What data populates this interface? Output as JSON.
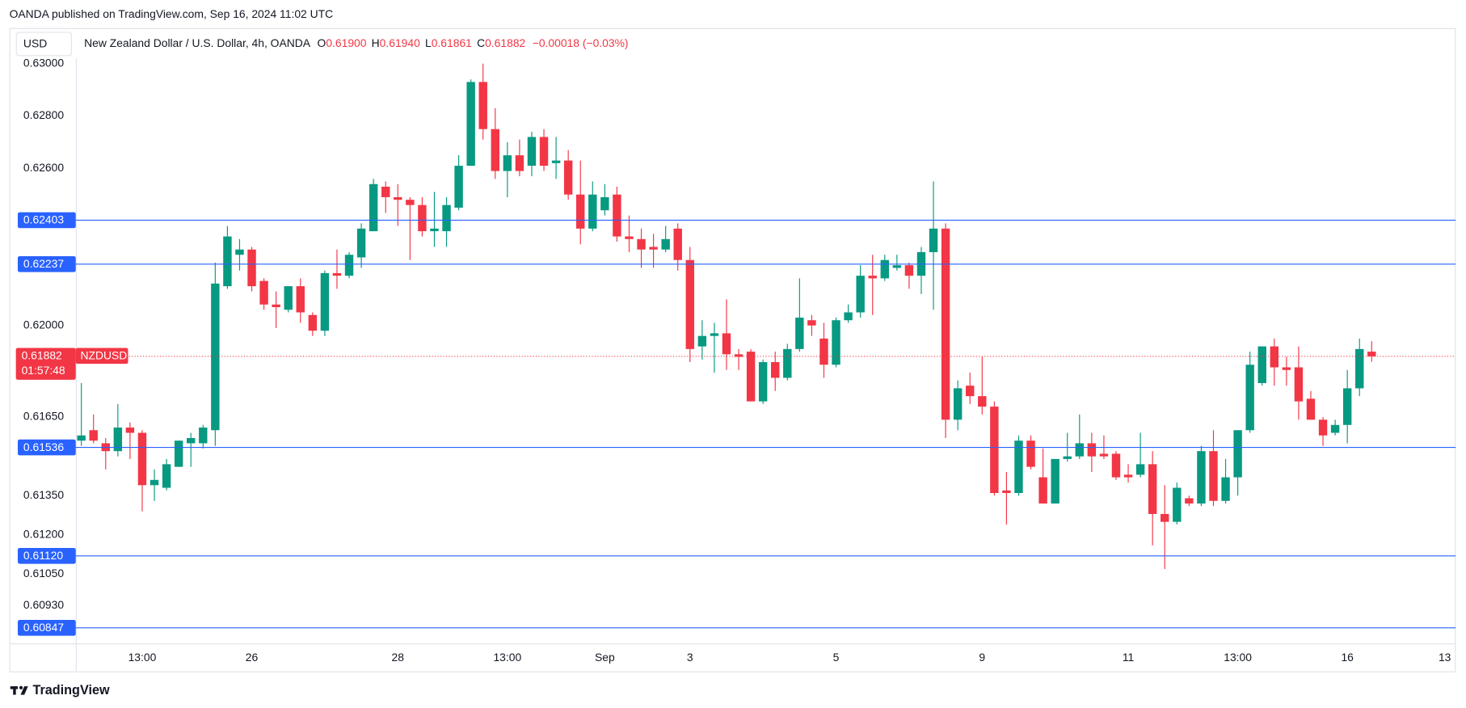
{
  "header": "OANDA published on TradingView.com, Sep 16, 2024 11:02 UTC",
  "footer": "TradingView",
  "chart_data": {
    "type": "candlestick",
    "currency": "USD",
    "symbol": "NZDUSD",
    "legend": {
      "title": "New Zealand Dollar / U.S. Dollar, 4h, OANDA",
      "items": [
        {
          "key": "O",
          "value": {
            "value": 0.619,
            "label": "0.61900"
          }
        },
        {
          "key": "H",
          "value": {
            "value": 0.6194,
            "label": "0.61940"
          }
        },
        {
          "key": "L",
          "value": {
            "value": 0.61861,
            "label": "0.61861"
          }
        },
        {
          "key": "C",
          "value": {
            "value": 0.61882,
            "label": "0.61882"
          }
        }
      ],
      "change": "−0.00018 (−0.03%)"
    },
    "categories": [
      null,
      null,
      null,
      null,
      null,
      "13:00",
      null,
      null,
      null,
      null,
      null,
      null,
      null,
      null,
      "26",
      null,
      null,
      null,
      null,
      null,
      null,
      null,
      null,
      null,
      null,
      null,
      "28",
      null,
      null,
      null,
      null,
      null,
      null,
      null,
      null,
      "13:00",
      null,
      null,
      null,
      null,
      null,
      null,
      null,
      "Sep",
      null,
      null,
      null,
      null,
      null,
      null,
      "3",
      null,
      null,
      null,
      null,
      null,
      null,
      null,
      null,
      null,
      null,
      null,
      "5",
      null,
      null,
      null,
      null,
      null,
      null,
      null,
      null,
      null,
      null,
      null,
      "9",
      null,
      null,
      null,
      null,
      null,
      null,
      null,
      null,
      null,
      null,
      null,
      "11",
      null,
      null,
      null,
      null,
      null,
      null,
      null,
      null,
      "13:00",
      null,
      null,
      null,
      null,
      null,
      null,
      null,
      null,
      "16",
      null,
      null,
      null,
      null,
      null,
      null,
      null,
      "13"
    ],
    "open": [
      0.6156,
      0.616,
      0.6155,
      0.6152,
      0.6161,
      0.6159,
      0.6139,
      0.6138,
      0.6146,
      0.6155,
      0.6155,
      0.616,
      0.6215,
      0.6227,
      0.6229,
      0.6217,
      0.6208,
      0.6206,
      0.6215,
      0.6204,
      0.6198,
      0.622,
      0.6219,
      0.6226,
      0.6236,
      0.6253,
      0.6249,
      0.6248,
      0.6246,
      0.6236,
      0.6236,
      0.6245,
      0.6261,
      0.6293,
      0.6275,
      0.6259,
      0.6265,
      0.6261,
      0.6272,
      0.6262,
      0.6263,
      0.625,
      0.6237,
      0.6244,
      0.625,
      0.6234,
      0.6233,
      0.623,
      0.6229,
      0.6237,
      0.6225,
      0.6192,
      0.6196,
      0.6197,
      0.6189,
      0.619,
      0.6171,
      0.6186,
      0.618,
      0.6191,
      0.6202,
      0.6195,
      0.6185,
      0.6202,
      0.6205,
      0.6219,
      0.6218,
      0.6222,
      0.6223,
      0.6219,
      0.6228,
      0.6237,
      0.6164,
      0.6177,
      0.6173,
      0.6169,
      0.6137,
      0.6136,
      0.6156,
      0.6142,
      0.6132,
      0.6149,
      0.615,
      0.6155,
      0.6151,
      0.6151,
      0.6143,
      0.6143,
      0.6147,
      0.6128,
      0.6125,
      0.6134,
      0.6132,
      0.6152,
      0.6133,
      0.6142,
      0.616,
      0.6178,
      0.6192,
      0.6184,
      0.6184,
      0.6172,
      0.6164,
      0.6159,
      0.6162,
      0.6176,
      0.619,
      null,
      null,
      null,
      null,
      null,
      null
    ],
    "high": [
      0.6178,
      0.6166,
      0.6157,
      0.617,
      0.6163,
      0.616,
      0.6145,
      0.6149,
      0.6156,
      0.6159,
      0.6162,
      0.6224,
      0.6238,
      0.6233,
      0.623,
      0.6218,
      0.6213,
      0.6215,
      0.6218,
      0.6205,
      0.6221,
      0.6229,
      0.6228,
      0.6239,
      0.6256,
      0.6255,
      0.6254,
      0.6249,
      0.6249,
      0.6251,
      0.6249,
      0.6265,
      0.6294,
      0.63,
      0.6283,
      0.627,
      0.6271,
      0.6274,
      0.6275,
      0.6272,
      0.6267,
      0.6263,
      0.6255,
      0.6254,
      0.6253,
      0.6242,
      0.6237,
      0.6235,
      0.6238,
      0.6239,
      0.623,
      0.6202,
      0.6201,
      0.621,
      0.6191,
      0.6191,
      0.6187,
      0.619,
      0.6193,
      0.6218,
      0.6204,
      0.6201,
      0.6203,
      0.6208,
      0.6223,
      0.6227,
      0.6227,
      0.6227,
      0.6224,
      0.623,
      0.6255,
      0.6239,
      0.6179,
      0.6182,
      0.6188,
      0.6171,
      0.6144,
      0.6158,
      0.6158,
      0.6153,
      0.6149,
      0.6159,
      0.6166,
      0.6159,
      0.6158,
      0.6152,
      0.6147,
      0.6159,
      0.6152,
      0.6139,
      0.614,
      0.6135,
      0.6154,
      0.616,
      0.6149,
      0.616,
      0.619,
      0.6192,
      0.6195,
      0.6188,
      0.6192,
      0.6175,
      0.6165,
      0.6164,
      0.6183,
      0.6195,
      0.6194,
      null,
      null,
      null,
      null,
      null,
      null
    ],
    "low": [
      0.6154,
      0.6155,
      0.6145,
      0.615,
      0.6149,
      0.6129,
      0.6133,
      0.6137,
      0.6146,
      0.6146,
      0.6153,
      0.6154,
      0.6214,
      0.6221,
      0.6213,
      0.6206,
      0.6199,
      0.6205,
      0.6201,
      0.6196,
      0.6196,
      0.6214,
      0.6218,
      0.6222,
      0.6236,
      0.6243,
      0.6238,
      0.6225,
      0.6234,
      0.623,
      0.623,
      0.6244,
      0.6261,
      0.6271,
      0.6256,
      0.6249,
      0.6257,
      0.6257,
      0.6259,
      0.6256,
      0.6248,
      0.6231,
      0.6236,
      0.6242,
      0.6232,
      0.6228,
      0.6222,
      0.6222,
      0.6228,
      0.6221,
      0.6186,
      0.6187,
      0.6182,
      0.6183,
      0.6183,
      0.6171,
      0.617,
      0.6175,
      0.6179,
      0.619,
      0.6196,
      0.618,
      0.6184,
      0.6201,
      0.6203,
      0.6204,
      0.6217,
      0.6221,
      0.6214,
      0.6212,
      0.6206,
      0.6157,
      0.616,
      0.617,
      0.6166,
      0.6135,
      0.6124,
      0.6135,
      0.6145,
      0.6132,
      0.6132,
      0.6148,
      0.6149,
      0.6144,
      0.6149,
      0.6141,
      0.614,
      0.6142,
      0.6116,
      0.6107,
      0.6124,
      0.6131,
      0.6131,
      0.6131,
      0.6132,
      0.6135,
      0.6159,
      0.6177,
      0.6177,
      0.6177,
      0.6164,
      0.6164,
      0.6154,
      0.6158,
      0.6155,
      0.6173,
      0.61861,
      null,
      null,
      null,
      null,
      null,
      null
    ],
    "close": [
      0.6158,
      0.6156,
      0.6152,
      0.6161,
      0.6159,
      0.6139,
      0.6141,
      0.6147,
      0.6156,
      0.6157,
      0.6161,
      0.6216,
      0.6234,
      0.6229,
      0.6215,
      0.6208,
      0.6207,
      0.6215,
      0.6205,
      0.6198,
      0.622,
      0.6219,
      0.6227,
      0.6237,
      0.6254,
      0.6249,
      0.6248,
      0.6246,
      0.6236,
      0.6237,
      0.6246,
      0.6261,
      0.6293,
      0.6275,
      0.6259,
      0.6265,
      0.6259,
      0.6272,
      0.6261,
      0.6263,
      0.625,
      0.6237,
      0.625,
      0.6249,
      0.6234,
      0.6233,
      0.6229,
      0.6229,
      0.6233,
      0.6225,
      0.6191,
      0.6196,
      0.6197,
      0.6189,
      0.6188,
      0.6171,
      0.6186,
      0.618,
      0.6191,
      0.6203,
      0.62,
      0.6185,
      0.6202,
      0.6205,
      0.6219,
      0.6218,
      0.6225,
      0.6223,
      0.6219,
      0.6228,
      0.6237,
      0.6164,
      0.6176,
      0.6173,
      0.6169,
      0.6136,
      0.6136,
      0.6156,
      0.6146,
      0.6132,
      0.6149,
      0.615,
      0.6155,
      0.615,
      0.615,
      0.6142,
      0.6142,
      0.6147,
      0.6128,
      0.6125,
      0.6138,
      0.6132,
      0.6152,
      0.6133,
      0.6142,
      0.616,
      0.6185,
      0.6192,
      0.6184,
      0.6183,
      0.6171,
      0.6164,
      0.6158,
      0.6162,
      0.6176,
      0.6191,
      0.61882,
      null,
      null,
      null,
      null,
      null,
      null
    ],
    "up_color": "#089981",
    "down_color": "#f23645",
    "ylim": [
      0.60786,
      0.63136
    ],
    "yticks": [
      {
        "value": 0.63,
        "label": "0.63000"
      },
      {
        "value": 0.628,
        "label": "0.62800"
      },
      {
        "value": 0.626,
        "label": "0.62600"
      },
      {
        "value": 0.62,
        "label": "0.62000"
      },
      {
        "value": 0.6165,
        "label": "0.61650"
      },
      {
        "value": 0.6135,
        "label": "0.61350"
      },
      {
        "value": 0.612,
        "label": "0.61200"
      },
      {
        "value": 0.6105,
        "label": "0.61050"
      },
      {
        "value": 0.6093,
        "label": "0.60930"
      }
    ],
    "grid": false,
    "levels": [
      0.62403,
      0.62237,
      0.61536,
      {
        "value": 0.6112,
        "label": "0.61120"
      },
      0.60847
    ],
    "level_color": "#2962ff",
    "last_price": 0.61882,
    "countdown": "01:57:48"
  }
}
